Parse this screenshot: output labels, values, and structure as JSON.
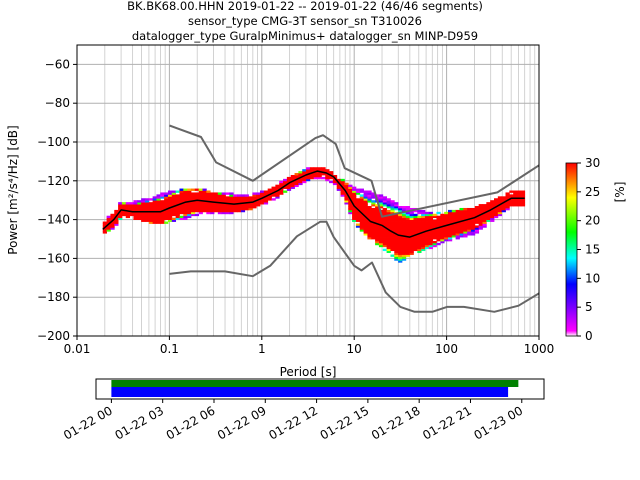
{
  "title_lines": [
    "BK.BK68.00.HHN   2019-01-22 -- 2019-01-22  (46/46 segments)",
    "sensor_type CMG-3T sensor_sn T310026",
    "datalogger_type GuralpMinimus+ datalogger_sn MINP-D959"
  ],
  "chart_data": [
    {
      "type": "heatmap",
      "title": "BK.BK68.00.HHN   2019-01-22 -- 2019-01-22  (46/46 segments)",
      "xlabel": "Period [s]",
      "ylabel": "Power [m²/s⁴/Hz] [dB]",
      "xscale": "log",
      "xlim": [
        0.01,
        1000
      ],
      "ylim": [
        -200,
        -50
      ],
      "x_ticks": [
        "0.01",
        "0.1",
        "1",
        "10",
        "100",
        "1000"
      ],
      "y_ticks": [
        "−200",
        "−180",
        "−160",
        "−140",
        "−120",
        "−100",
        "−80",
        "−60"
      ],
      "grid": true,
      "colorbar": {
        "label": "[%]",
        "range": [
          0,
          30
        ],
        "ticks": [
          "0",
          "5",
          "10",
          "15",
          "20",
          "25",
          "30"
        ],
        "colormap": [
          "#ffffff",
          "#ff00ff",
          "#8000ff",
          "#0000ff",
          "#00ffff",
          "#00ff00",
          "#ffff00",
          "#ff0000"
        ]
      },
      "series": [
        {
          "role": "mode",
          "color": "#000000",
          "x": [
            0.019,
            0.025,
            0.03,
            0.04,
            0.06,
            0.08,
            0.1,
            0.15,
            0.2,
            0.3,
            0.5,
            0.8,
            1.0,
            1.5,
            2.0,
            3.0,
            4.0,
            5.0,
            6.0,
            8.0,
            10.0,
            15.0,
            20.0,
            25.0,
            30.0,
            40.0,
            60.0,
            100.0,
            200.0,
            300.0,
            500.0,
            700.0
          ],
          "y": [
            -145,
            -140,
            -135,
            -136,
            -136,
            -136,
            -134,
            -131,
            -130,
            -131,
            -132,
            -131,
            -129,
            -125,
            -121,
            -117,
            -115,
            -116,
            -118,
            -125,
            -133,
            -141,
            -143,
            -146,
            -148,
            -149,
            -146,
            -143,
            -139,
            -135,
            -129,
            -129
          ]
        },
        {
          "role": "high-noise-model",
          "color": "#666666",
          "x": [
            0.1,
            0.22,
            0.32,
            0.8,
            3.8,
            4.6,
            6.3,
            7.9,
            15.4,
            20,
            354.8,
            1000
          ],
          "y": [
            -91.5,
            -97.4,
            -110.5,
            -120.0,
            -98.0,
            -96.5,
            -101.0,
            -113.5,
            -120.0,
            -138.5,
            -126.0,
            -112.0
          ]
        },
        {
          "role": "low-noise-model",
          "color": "#666666",
          "x": [
            0.1,
            0.17,
            0.4,
            0.8,
            1.24,
            2.4,
            4.3,
            5.0,
            6.0,
            10.0,
            12.0,
            15.6,
            21.9,
            31.6,
            45,
            70,
            101,
            154,
            328,
            600,
            1000
          ],
          "y": [
            -168.0,
            -166.7,
            -166.7,
            -169.2,
            -163.7,
            -148.6,
            -141.1,
            -141.1,
            -149.0,
            -163.8,
            -166.2,
            -162.1,
            -177.5,
            -185.0,
            -187.5,
            -187.5,
            -185.0,
            -185.0,
            -187.5,
            -184.4,
            -178.0
          ]
        }
      ],
      "pdf_envelope": {
        "x": [
          0.019,
          0.025,
          0.03,
          0.04,
          0.06,
          0.08,
          0.1,
          0.15,
          0.2,
          0.3,
          0.5,
          0.8,
          1.0,
          1.5,
          2.0,
          3.0,
          4.0,
          5.0,
          6.0,
          8.0,
          10.0,
          15.0,
          20.0,
          25.0,
          30.0,
          40.0,
          60.0,
          100.0,
          200.0,
          300.0,
          500.0,
          700.0
        ],
        "upper": [
          -141,
          -137,
          -131,
          -131,
          -129,
          -127,
          -126,
          -124,
          -124,
          -126,
          -127,
          -127,
          -126,
          -122,
          -118,
          -114,
          -113,
          -114,
          -116,
          -121,
          -124,
          -126,
          -128,
          -130,
          -132,
          -134,
          -136,
          -136,
          -134,
          -131,
          -125,
          -125
        ],
        "lower": [
          -147,
          -144,
          -139,
          -139,
          -141,
          -142,
          -141,
          -139,
          -137,
          -137,
          -136,
          -134,
          -132,
          -128,
          -124,
          -120,
          -118,
          -119,
          -121,
          -130,
          -141,
          -150,
          -154,
          -158,
          -162,
          -158,
          -155,
          -151,
          -147,
          -141,
          -133,
          -133
        ]
      }
    },
    {
      "type": "timeline",
      "x_tick_labels": [
        "01-22 00",
        "01-22 03",
        "01-22 06",
        "01-22 09",
        "01-22 12",
        "01-22 15",
        "01-22 18",
        "01-22 21",
        "01-23 00"
      ],
      "xlim_hours": [
        -0.9,
        25.3
      ],
      "bars": [
        {
          "role": "data-coverage",
          "color": "#008000",
          "start_hour": 0.0,
          "end_hour": 23.8
        },
        {
          "role": "psd-coverage",
          "color": "#0000ff",
          "start_hour": 0.0,
          "end_hour": 23.2
        }
      ]
    }
  ]
}
